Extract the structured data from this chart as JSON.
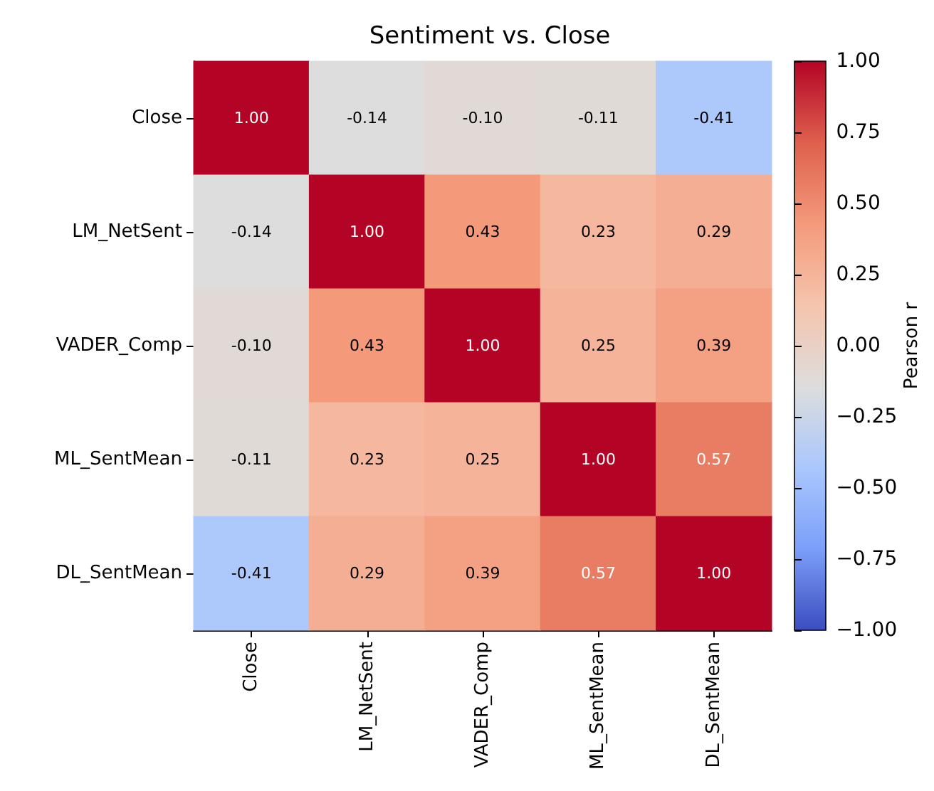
{
  "chart_data": {
    "type": "heatmap",
    "title": "Sentiment vs. Close",
    "categories": [
      "Close",
      "LM_NetSent",
      "VADER_Comp",
      "ML_SentMean",
      "DL_SentMean"
    ],
    "y_categories": [
      "Close",
      "LM_NetSent",
      "VADER_Comp",
      "ML_SentMean",
      "DL_SentMean"
    ],
    "cells": [
      [
        1,
        -0.14,
        -0.1,
        -0.11,
        -0.41
      ],
      [
        -0.14,
        1,
        0.43,
        0.23,
        0.29
      ],
      [
        -0.1,
        0.43,
        1,
        0.25,
        0.39
      ],
      [
        -0.11,
        0.23,
        0.25,
        1,
        0.57
      ],
      [
        -0.41,
        0.29,
        0.39,
        0.57,
        1
      ]
    ],
    "cell_labels": [
      [
        "1.00",
        "-0.14",
        "-0.10",
        "-0.11",
        "-0.41"
      ],
      [
        "-0.14",
        "1.00",
        "0.43",
        "0.23",
        "0.29"
      ],
      [
        "-0.10",
        "0.43",
        "1.00",
        "0.25",
        "0.39"
      ],
      [
        "-0.11",
        "0.23",
        "0.25",
        "1.00",
        "0.57"
      ],
      [
        "-0.41",
        "0.29",
        "0.39",
        "0.57",
        "1.00"
      ]
    ],
    "clim": [
      -1,
      1
    ],
    "cticks": [
      {
        "value": -1,
        "label": "−1.00"
      },
      {
        "value": -0.75,
        "label": "−0.75"
      },
      {
        "value": -0.5,
        "label": "−0.50"
      },
      {
        "value": -0.25,
        "label": "−0.25"
      },
      {
        "value": 0,
        "label": "0.00"
      },
      {
        "value": 0.25,
        "label": "0.25"
      },
      {
        "value": 0.5,
        "label": "0.50"
      },
      {
        "value": 0.75,
        "label": "0.75"
      },
      {
        "value": 1,
        "label": "1.00"
      }
    ],
    "clabel": "Pearson r"
  }
}
